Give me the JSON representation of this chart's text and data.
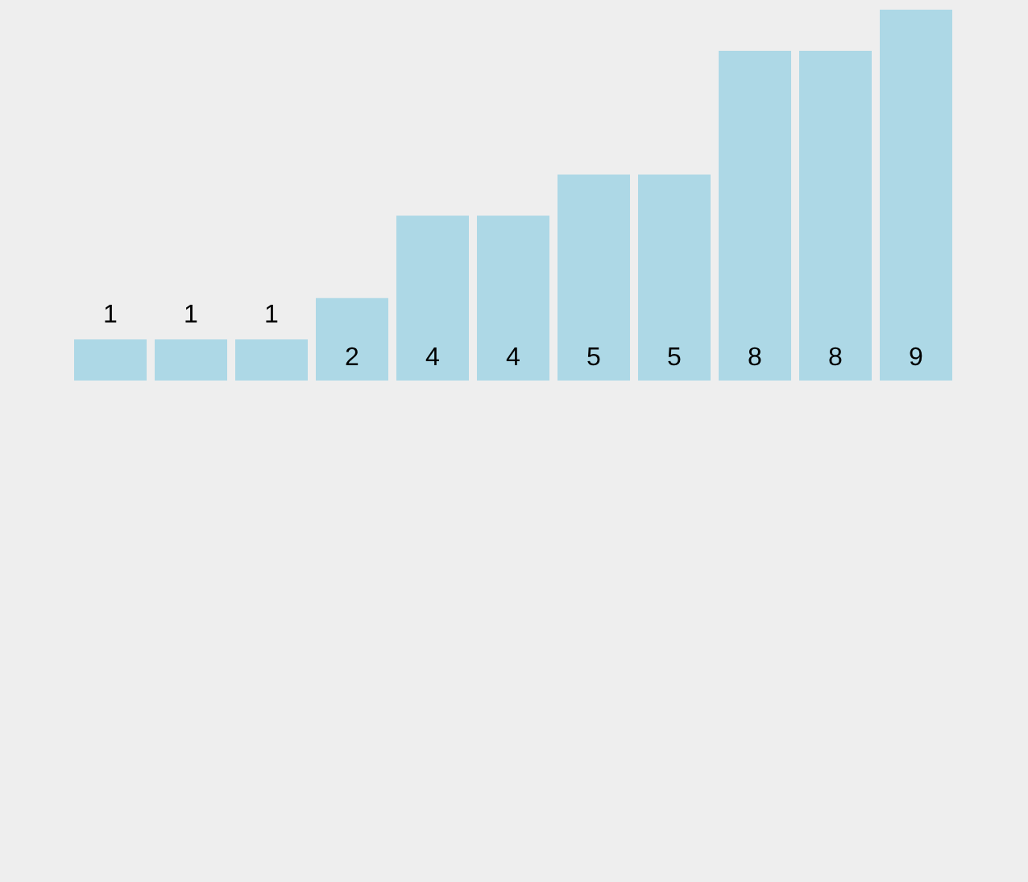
{
  "chart_data": {
    "type": "bar",
    "categories": [
      null,
      null,
      null,
      null,
      null,
      null,
      null,
      null,
      null,
      null,
      null
    ],
    "values": [
      1,
      1,
      1,
      2,
      4,
      4,
      5,
      5,
      8,
      8,
      9
    ],
    "color": "#add8e6",
    "data_labels": true,
    "legend": false,
    "tick_labels": false
  }
}
